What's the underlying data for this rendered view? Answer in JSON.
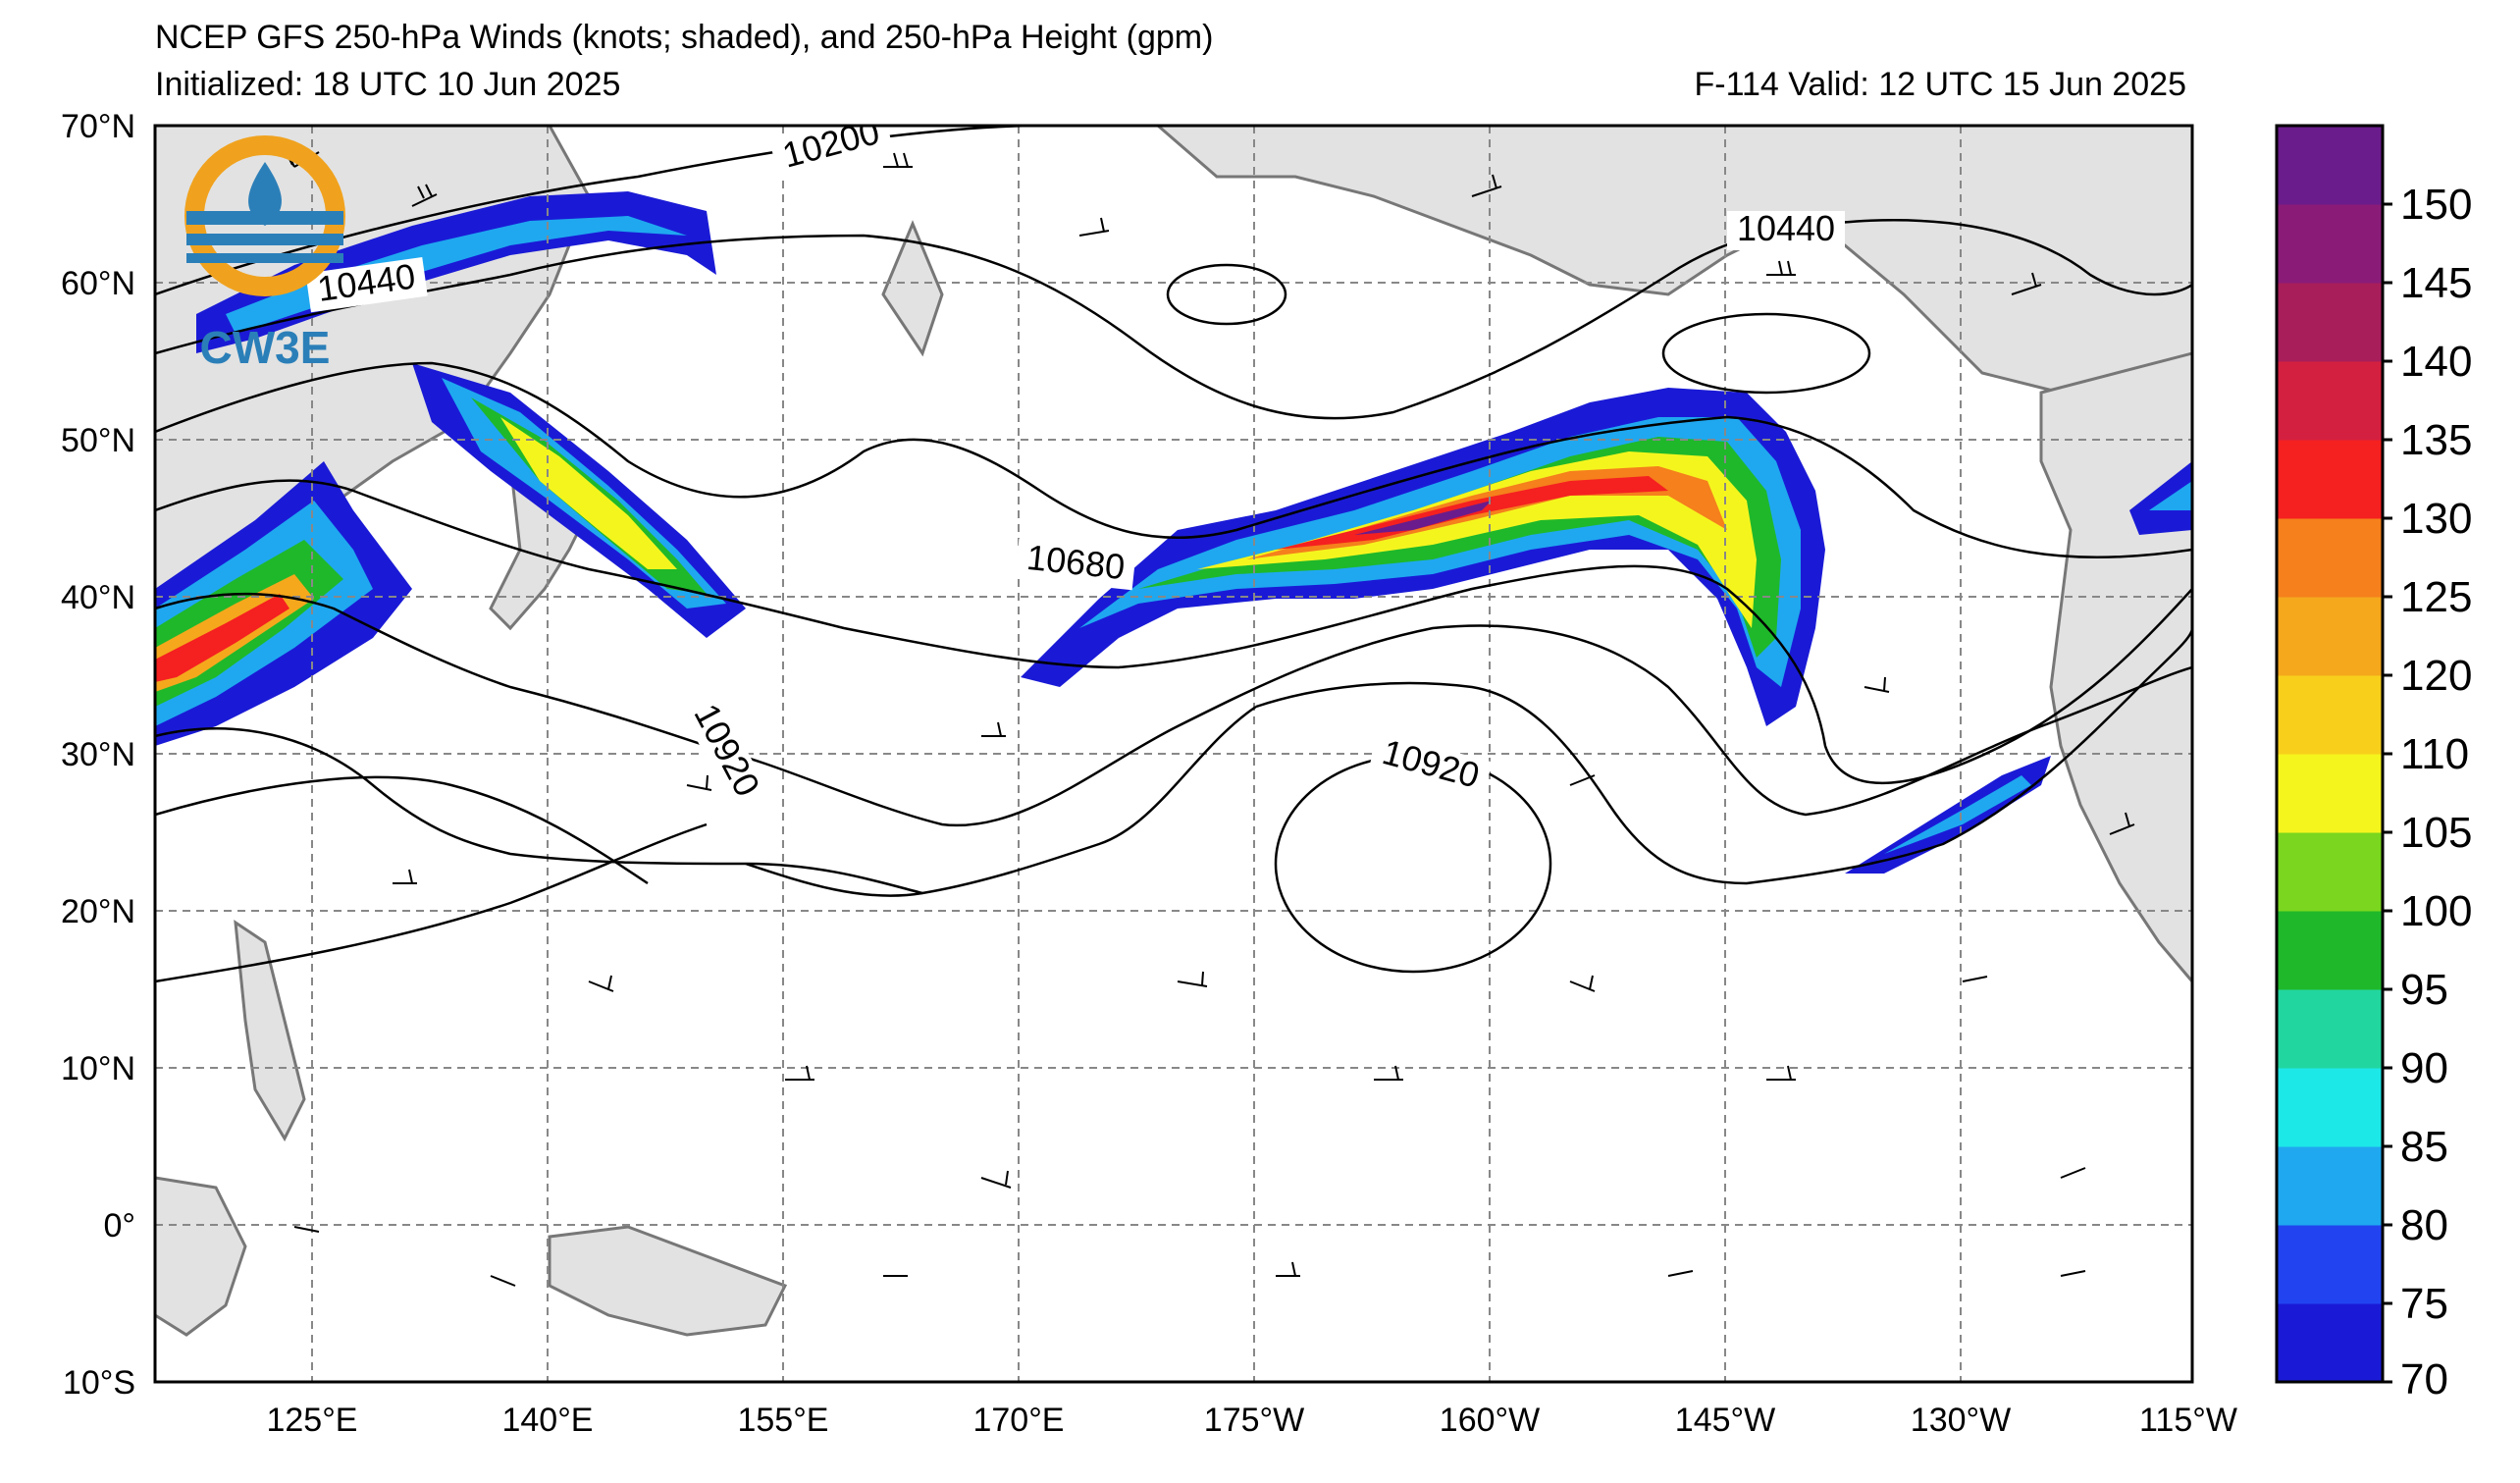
{
  "header": {
    "title": "NCEP GFS 250-hPa Winds (knots; shaded), and 250-hPa Height (gpm)",
    "initialized": "Initialized: 18 UTC 10 Jun 2025",
    "valid": "F-114  Valid: 12 UTC 15 Jun 2025"
  },
  "logo": {
    "text": "CW3E",
    "ring_color": "#F0A21E",
    "accent_color": "#2B7FB8"
  },
  "map": {
    "lat_labels": [
      "70°N",
      "60°N",
      "50°N",
      "40°N",
      "30°N",
      "20°N",
      "10°N",
      "0°",
      "10°S"
    ],
    "lon_labels": [
      "125°E",
      "140°E",
      "155°E",
      "170°E",
      "175°W",
      "160°W",
      "145°W",
      "130°W",
      "115°W"
    ],
    "contour_labels": [
      "10200",
      "10440",
      "10440",
      "10680",
      "10920",
      "10920"
    ],
    "land_color": "#e2e2e2"
  },
  "colorbar": {
    "ticks": [
      "70",
      "75",
      "80",
      "85",
      "90",
      "95",
      "100",
      "105",
      "110",
      "120",
      "125",
      "130",
      "135",
      "140",
      "145",
      "150"
    ],
    "colors": [
      "#1a1ad6",
      "#2244f0",
      "#1fa8f0",
      "#1de8e8",
      "#22d6a0",
      "#1fb82a",
      "#7ad61e",
      "#f5f51e",
      "#f8d01c",
      "#f5a81c",
      "#f5801c",
      "#f52020",
      "#d42040",
      "#a81e5a",
      "#8a1c78",
      "#6a1c8c"
    ]
  }
}
